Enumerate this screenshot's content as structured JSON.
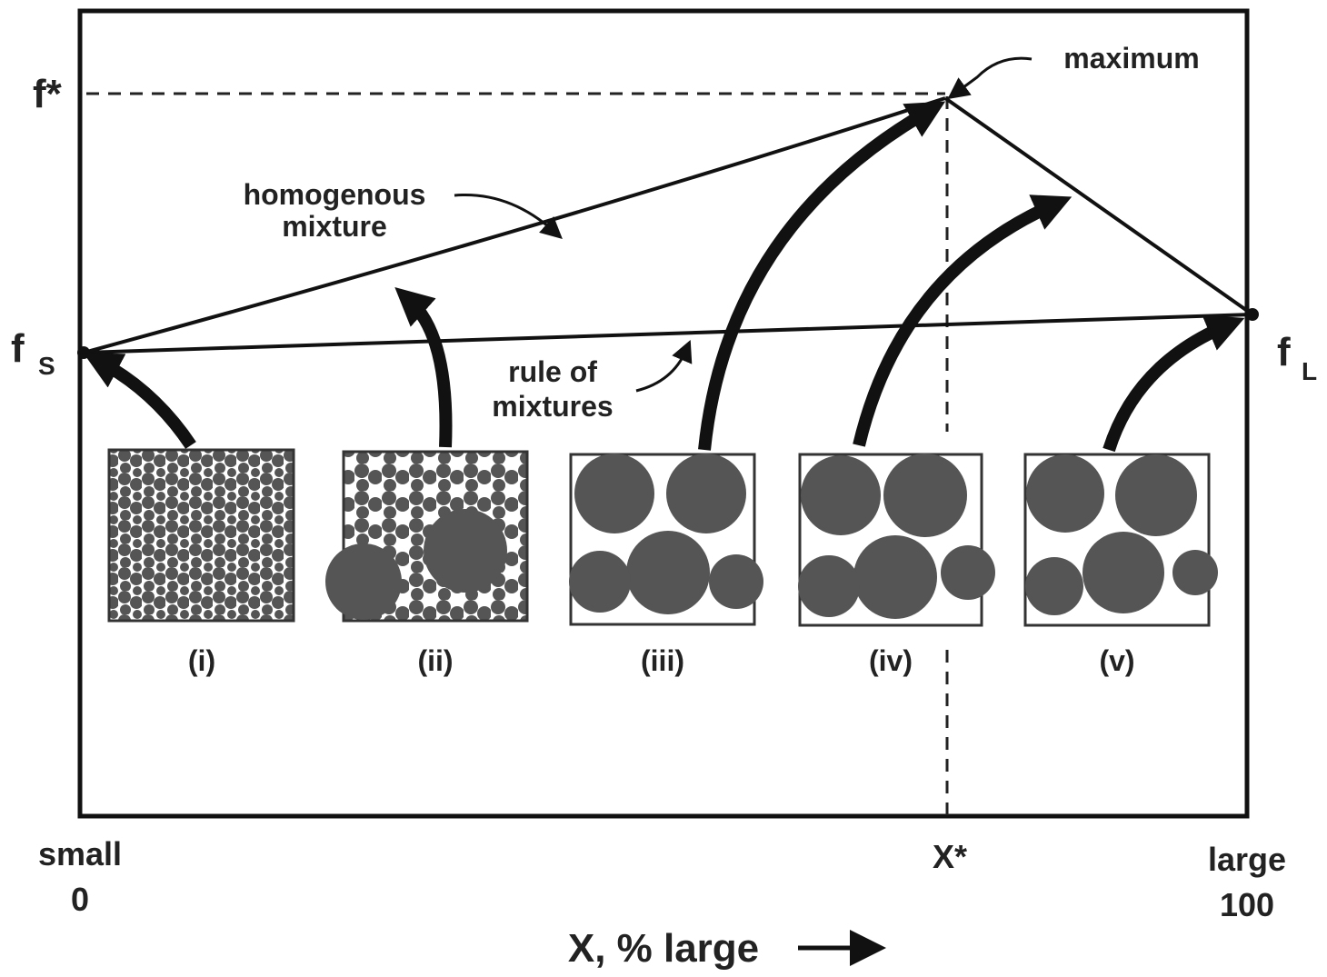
{
  "axis": {
    "f_star": "f*",
    "f_s": {
      "main": "f",
      "sub": "S"
    },
    "f_l": {
      "main": "f",
      "sub": "L"
    },
    "x_left": [
      "small",
      "0"
    ],
    "x_right": [
      "large",
      "100"
    ],
    "x_star": "X*",
    "x_title": "X, % large"
  },
  "annotations": {
    "maximum": "maximum",
    "homogeneous": [
      "homogenous",
      "mixture"
    ],
    "rule": [
      "rule of",
      "mixtures"
    ]
  },
  "panels": [
    "(i)",
    "(ii)",
    "(iii)",
    "(iv)",
    "(v)"
  ]
}
